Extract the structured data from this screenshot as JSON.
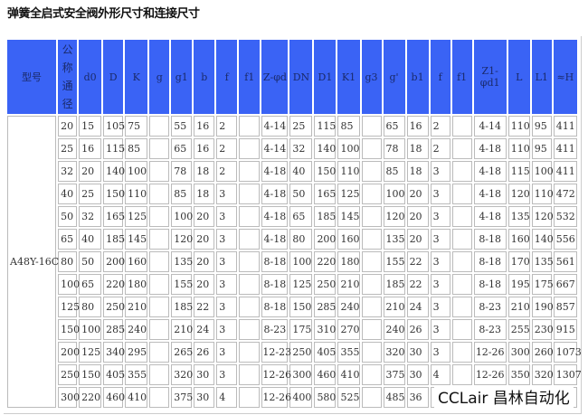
{
  "title": "弹簧全启式安全阀外形尺寸和连接尺寸",
  "watermark": "CCLair 昌林自动化",
  "header_color": "#3a63f5",
  "table": {
    "headers": [
      "型号",
      "公称通径",
      "d0",
      "D",
      "K",
      "g",
      "g1",
      "b",
      "f",
      "f1",
      "Z-φd",
      "DN",
      "D1",
      "K1",
      "g3",
      "g'",
      "b1",
      "f",
      "f1",
      "Z1-φd1",
      "L",
      "L1",
      "≈H"
    ],
    "model": "A48Y-16C",
    "rows": [
      [
        "20",
        "15",
        "105",
        "75",
        "",
        "55",
        "16",
        "2",
        "",
        "4-14",
        "25",
        "115",
        "85",
        "",
        "65",
        "16",
        "2",
        "",
        "4-14",
        "110",
        "95",
        "411"
      ],
      [
        "25",
        "16",
        "115",
        "85",
        "",
        "65",
        "16",
        "2",
        "",
        "4-14",
        "32",
        "140",
        "100",
        "",
        "78",
        "18",
        "2",
        "",
        "4-18",
        "110",
        "95",
        "411"
      ],
      [
        "32",
        "20",
        "140",
        "100",
        "",
        "78",
        "18",
        "2",
        "",
        "4-18",
        "40",
        "150",
        "110",
        "",
        "85",
        "18",
        "3",
        "",
        "4-18",
        "115",
        "100",
        "411"
      ],
      [
        "40",
        "25",
        "150",
        "110",
        "",
        "85",
        "18",
        "3",
        "",
        "4-18",
        "50",
        "165",
        "125",
        "",
        "100",
        "20",
        "3",
        "",
        "4-18",
        "120",
        "110",
        "472"
      ],
      [
        "50",
        "32",
        "165",
        "125",
        "",
        "100",
        "20",
        "3",
        "",
        "4-18",
        "65",
        "185",
        "145",
        "",
        "120",
        "20",
        "3",
        "",
        "4-18",
        "135",
        "120",
        "532"
      ],
      [
        "65",
        "40",
        "185",
        "145",
        "",
        "120",
        "20",
        "3",
        "",
        "4-18",
        "80",
        "200",
        "160",
        "",
        "135",
        "20",
        "3",
        "",
        "8-18",
        "160",
        "140",
        "556"
      ],
      [
        "80",
        "50",
        "200",
        "160",
        "",
        "135",
        "20",
        "3",
        "",
        "8-18",
        "100",
        "220",
        "180",
        "",
        "155",
        "22",
        "3",
        "",
        "8-18",
        "170",
        "135",
        "561"
      ],
      [
        "100",
        "65",
        "220",
        "180",
        "",
        "155",
        "20",
        "3",
        "",
        "8-18",
        "125",
        "250",
        "210",
        "",
        "185",
        "22",
        "3",
        "",
        "8-18",
        "195",
        "175",
        "667"
      ],
      [
        "125",
        "80",
        "250",
        "210",
        "",
        "185",
        "22",
        "3",
        "",
        "8-18",
        "150",
        "285",
        "240",
        "",
        "210",
        "24",
        "3",
        "",
        "8-23",
        "210",
        "190",
        "857"
      ],
      [
        "150",
        "100",
        "285",
        "240",
        "",
        "210",
        "24",
        "3",
        "",
        "8-23",
        "175",
        "310",
        "270",
        "",
        "240",
        "26",
        "3",
        "",
        "8-23",
        "255",
        "230",
        "915"
      ],
      [
        "200",
        "125",
        "340",
        "295",
        "",
        "265",
        "26",
        "3",
        "",
        "12-23",
        "250",
        "405",
        "355",
        "",
        "320",
        "30",
        "3",
        "",
        "12-26",
        "300",
        "260",
        "1073"
      ],
      [
        "250",
        "150",
        "405",
        "355",
        "",
        "320",
        "30",
        "3",
        "",
        "12-26",
        "300",
        "460",
        "410",
        "",
        "375",
        "30",
        "4",
        "",
        "12-26",
        "350",
        "320",
        "1307"
      ],
      [
        "300",
        "220",
        "460",
        "410",
        "",
        "375",
        "30",
        "4",
        "",
        "12-26",
        "400",
        "580",
        "525",
        "",
        "485",
        "36",
        "",
        "",
        "",
        "",
        "",
        ""
      ]
    ]
  }
}
